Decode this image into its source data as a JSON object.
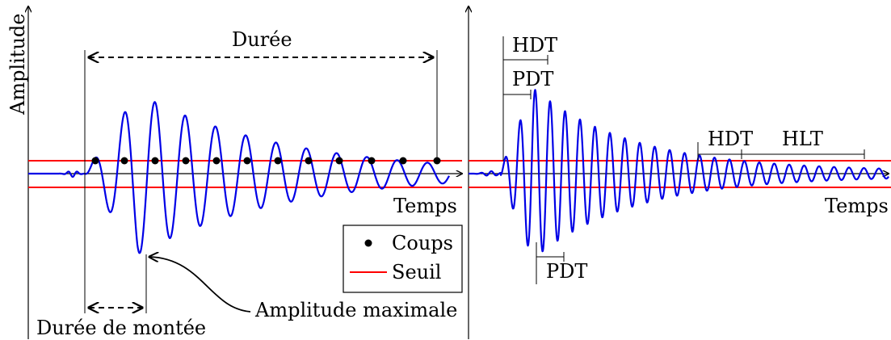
{
  "labels": {
    "amplitude": "Amplitude",
    "temps_left": "Temps",
    "temps_right": "Temps",
    "duree": "Durée",
    "duree_montee": "Durée de montée",
    "amplitude_max": "Amplitude maximale",
    "hdt_top": "HDT",
    "pdt_top": "PDT",
    "pdt_bottom": "PDT",
    "hdt_right": "HDT",
    "hlt": "HLT"
  },
  "legend": {
    "coups": "Coups",
    "seuil": "Seuil"
  },
  "colors": {
    "wave": "#0000e6",
    "threshold": "#ff0000",
    "axis": "#000000"
  }
}
